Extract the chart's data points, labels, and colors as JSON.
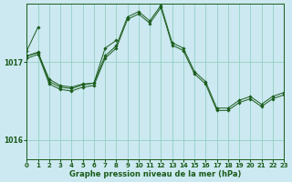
{
  "background_color": "#cce8f0",
  "line_color": "#1a5c1a",
  "grid_color": "#88ccbb",
  "xlabel": "Graphe pression niveau de la mer (hPa)",
  "yticks": [
    1016,
    1017
  ],
  "ylim": [
    1015.75,
    1017.75
  ],
  "xlim": [
    0,
    23
  ],
  "xticks": [
    0,
    1,
    2,
    3,
    4,
    5,
    6,
    7,
    8,
    9,
    10,
    11,
    12,
    13,
    14,
    15,
    16,
    17,
    18,
    19,
    20,
    21,
    22,
    23
  ],
  "series": [
    {
      "x": [
        0,
        1
      ],
      "y": [
        1017.15,
        1017.45
      ]
    },
    {
      "x": [
        0,
        1,
        2,
        3,
        4,
        5,
        6,
        7,
        8
      ],
      "y": [
        1017.08,
        1017.12,
        1016.78,
        1016.7,
        1016.68,
        1016.72,
        1016.73,
        1017.18,
        1017.28
      ]
    },
    {
      "x": [
        0,
        1,
        2,
        3,
        4,
        5,
        6,
        7,
        8,
        9,
        10,
        11,
        12,
        13,
        14,
        15,
        16,
        17,
        18,
        19,
        20,
        21,
        22,
        23
      ],
      "y": [
        1017.05,
        1017.1,
        1016.72,
        1016.65,
        1016.63,
        1016.68,
        1016.7,
        1017.05,
        1017.18,
        1017.55,
        1017.62,
        1017.5,
        1017.7,
        1017.22,
        1017.15,
        1016.85,
        1016.72,
        1016.38,
        1016.38,
        1016.48,
        1016.53,
        1016.43,
        1016.53,
        1016.58
      ]
    },
    {
      "x": [
        0,
        1,
        2,
        3,
        4,
        5,
        6,
        7,
        8,
        9,
        10,
        11,
        12,
        13,
        14,
        15,
        16,
        17,
        18,
        19,
        20,
        21,
        22,
        23
      ],
      "y": [
        1017.08,
        1017.13,
        1016.75,
        1016.68,
        1016.66,
        1016.71,
        1016.73,
        1017.08,
        1017.21,
        1017.58,
        1017.65,
        1017.53,
        1017.73,
        1017.25,
        1017.18,
        1016.88,
        1016.75,
        1016.41,
        1016.41,
        1016.51,
        1016.56,
        1016.46,
        1016.56,
        1016.61
      ]
    }
  ],
  "marker": "D",
  "markersize": 1.8,
  "linewidth": 0.7,
  "tick_fontsize": 5.0,
  "xlabel_fontsize": 6.0,
  "ytick_fontsize": 5.5
}
